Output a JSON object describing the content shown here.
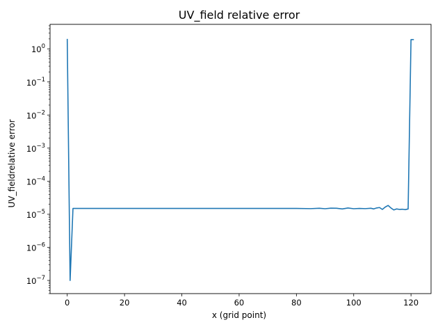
{
  "chart_data": {
    "type": "line",
    "title": "UV_field relative error",
    "xlabel": "x (grid point)",
    "ylabel": "UV_fieldrelative error",
    "yscale": "log",
    "xlim": [
      -6,
      127
    ],
    "ylim": [
      4e-08,
      5.5
    ],
    "xticks": [
      0,
      20,
      40,
      60,
      80,
      100,
      120
    ],
    "xtick_labels": [
      "0",
      "20",
      "40",
      "60",
      "80",
      "100",
      "120"
    ],
    "yticks": [
      1e-07,
      1e-06,
      1e-05,
      0.0001,
      0.001,
      0.01,
      0.1,
      1
    ],
    "ytick_labels": [
      {
        "base": "10",
        "exp": "−7"
      },
      {
        "base": "10",
        "exp": "−6"
      },
      {
        "base": "10",
        "exp": "−5"
      },
      {
        "base": "10",
        "exp": "−4"
      },
      {
        "base": "10",
        "exp": "−3"
      },
      {
        "base": "10",
        "exp": "−2"
      },
      {
        "base": "10",
        "exp": "−1"
      },
      {
        "base": "10",
        "exp": "0"
      }
    ],
    "grid": false,
    "line_color": "#1f77b4",
    "series": [
      {
        "x": [
          0,
          1,
          2,
          10,
          20,
          30,
          40,
          50,
          60,
          70,
          80,
          85,
          88,
          90,
          92,
          94,
          96,
          98,
          100,
          102,
          104,
          106,
          107,
          108,
          109,
          110,
          111,
          112,
          113,
          114,
          115,
          116,
          117,
          118,
          119,
          120,
          121
        ],
        "y": [
          2.0,
          1e-07,
          1.5e-05,
          1.5e-05,
          1.5e-05,
          1.5e-05,
          1.5e-05,
          1.5e-05,
          1.5e-05,
          1.5e-05,
          1.5e-05,
          1.48e-05,
          1.52e-05,
          1.47e-05,
          1.53e-05,
          1.52e-05,
          1.45e-05,
          1.55e-05,
          1.47e-05,
          1.5e-05,
          1.48e-05,
          1.52e-05,
          1.45e-05,
          1.55e-05,
          1.6e-05,
          1.4e-05,
          1.65e-05,
          1.85e-05,
          1.55e-05,
          1.35e-05,
          1.45e-05,
          1.4e-05,
          1.42e-05,
          1.38e-05,
          1.45e-05,
          1.9,
          1.9
        ]
      }
    ]
  }
}
